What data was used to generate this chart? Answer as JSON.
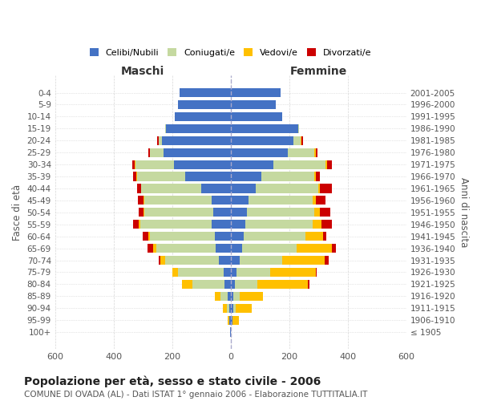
{
  "age_groups": [
    "100+",
    "95-99",
    "90-94",
    "85-89",
    "80-84",
    "75-79",
    "70-74",
    "65-69",
    "60-64",
    "55-59",
    "50-54",
    "45-49",
    "40-44",
    "35-39",
    "30-34",
    "25-29",
    "20-24",
    "15-19",
    "10-14",
    "5-9",
    "0-4"
  ],
  "birth_years": [
    "≤ 1905",
    "1906-1910",
    "1911-1915",
    "1916-1920",
    "1921-1925",
    "1926-1930",
    "1931-1935",
    "1936-1940",
    "1941-1945",
    "1946-1950",
    "1951-1955",
    "1956-1960",
    "1961-1965",
    "1966-1970",
    "1971-1975",
    "1976-1980",
    "1981-1985",
    "1986-1990",
    "1991-1995",
    "1996-2000",
    "2001-2005"
  ],
  "colors": {
    "celibe": "#4472c4",
    "coniugato": "#c5d9a0",
    "vedovo": "#ffc000",
    "divorziato": "#cc0000"
  },
  "maschi": {
    "celibe": [
      2,
      4,
      6,
      10,
      20,
      25,
      40,
      50,
      55,
      65,
      60,
      65,
      100,
      155,
      195,
      230,
      235,
      220,
      190,
      180,
      175
    ],
    "coniugato": [
      0,
      2,
      8,
      25,
      110,
      155,
      185,
      205,
      220,
      245,
      235,
      230,
      205,
      165,
      130,
      45,
      10,
      3,
      2,
      0,
      0
    ],
    "vedovo": [
      0,
      3,
      12,
      20,
      35,
      20,
      15,
      10,
      5,
      3,
      2,
      3,
      2,
      2,
      2,
      2,
      2,
      0,
      0,
      0,
      0
    ],
    "divorziato": [
      0,
      0,
      0,
      0,
      0,
      0,
      5,
      18,
      20,
      20,
      18,
      18,
      12,
      12,
      10,
      3,
      3,
      0,
      0,
      0,
      0
    ]
  },
  "femmine": {
    "nubile": [
      2,
      5,
      8,
      10,
      15,
      20,
      30,
      40,
      45,
      50,
      55,
      60,
      85,
      105,
      145,
      195,
      215,
      230,
      175,
      155,
      170
    ],
    "coniugata": [
      0,
      2,
      10,
      20,
      75,
      115,
      145,
      185,
      210,
      230,
      230,
      220,
      215,
      180,
      180,
      90,
      25,
      5,
      2,
      0,
      0
    ],
    "vedova": [
      0,
      20,
      55,
      80,
      175,
      155,
      145,
      120,
      60,
      30,
      20,
      10,
      5,
      5,
      5,
      5,
      3,
      0,
      0,
      0,
      0
    ],
    "divorziata": [
      0,
      0,
      0,
      0,
      3,
      5,
      15,
      15,
      12,
      35,
      35,
      35,
      40,
      15,
      15,
      8,
      5,
      0,
      0,
      0,
      0
    ]
  },
  "title": "Popolazione per età, sesso e stato civile - 2006",
  "subtitle": "COMUNE DI OVADA (AL) - Dati ISTAT 1° gennaio 2006 - Elaborazione TUTTITALIA.IT",
  "xlabel_maschi": "Maschi",
  "xlabel_femmine": "Femmine",
  "ylabel_left": "Fasce di età",
  "ylabel_right": "Anni di nascita",
  "xlim": 600,
  "background_color": "#ffffff",
  "grid_color": "#cccccc"
}
